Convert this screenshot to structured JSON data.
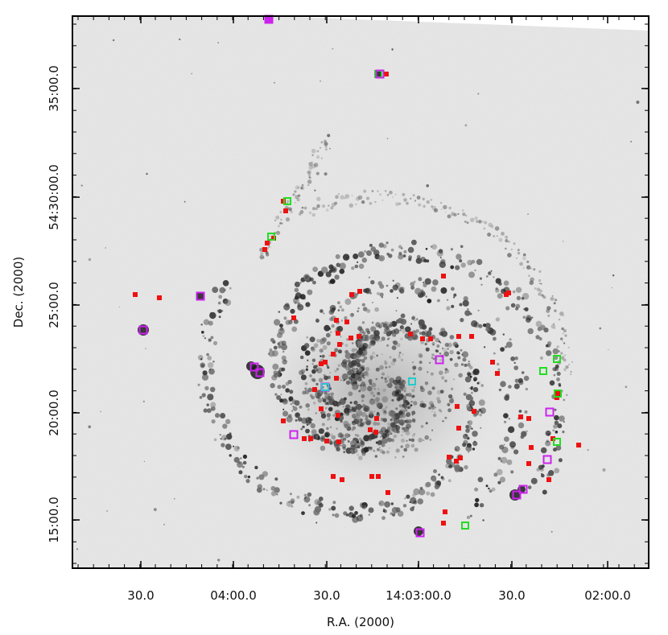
{
  "figure": {
    "xlabel": "R.A. (2000)",
    "ylabel": "Dec. (2000)",
    "x_ticks": [
      "30.0",
      "04:00.0",
      "30.0",
      "14:03:00.0",
      "30.0",
      "02:00.0"
    ],
    "y_ticks": [
      "15:00.0",
      "20:00.0",
      "25:00.0",
      "54:30:00.0",
      "35:00.0"
    ]
  },
  "marker_colors": {
    "red": "#ee1111",
    "green": "#22dd22",
    "magenta": "#cc22ee",
    "cyan": "#22cccc",
    "galaxy": "#1a1a1a"
  }
}
